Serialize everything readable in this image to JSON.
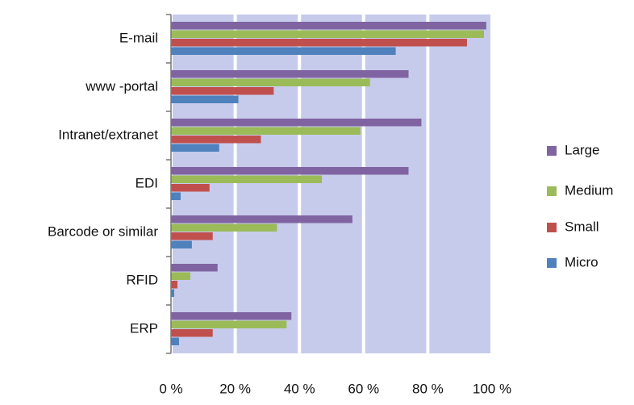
{
  "chart_data": {
    "type": "hbar",
    "categories": [
      "E-mail",
      "www -portal",
      "Intranet/extranet",
      "EDI",
      "Barcode or similar",
      "RFID",
      "ERP"
    ],
    "series": [
      {
        "name": "Large",
        "color": "#8064a2",
        "values": [
          98.2,
          74,
          78,
          74,
          56.5,
          14.5,
          37.5
        ]
      },
      {
        "name": "Medium",
        "color": "#9bbb59",
        "values": [
          97.5,
          62,
          59,
          47,
          33,
          6,
          36
        ]
      },
      {
        "name": "Small",
        "color": "#c0504d",
        "values": [
          92.2,
          32,
          28,
          12,
          13,
          2,
          13
        ]
      },
      {
        "name": "Micro",
        "color": "#4f81bd",
        "values": [
          70,
          21,
          15,
          3,
          6.5,
          1,
          2.5
        ]
      }
    ],
    "xlim": [
      0,
      100
    ],
    "xticks": [
      {
        "value": 0,
        "label": "0 %"
      },
      {
        "value": 20,
        "label": "20 %"
      },
      {
        "value": 40,
        "label": "40 %"
      },
      {
        "value": 60,
        "label": "60 %"
      },
      {
        "value": 80,
        "label": "80 %"
      },
      {
        "value": 100,
        "label": "100 %"
      }
    ],
    "grid": true,
    "plot_background": "#c6cbeb",
    "legend": "right"
  }
}
